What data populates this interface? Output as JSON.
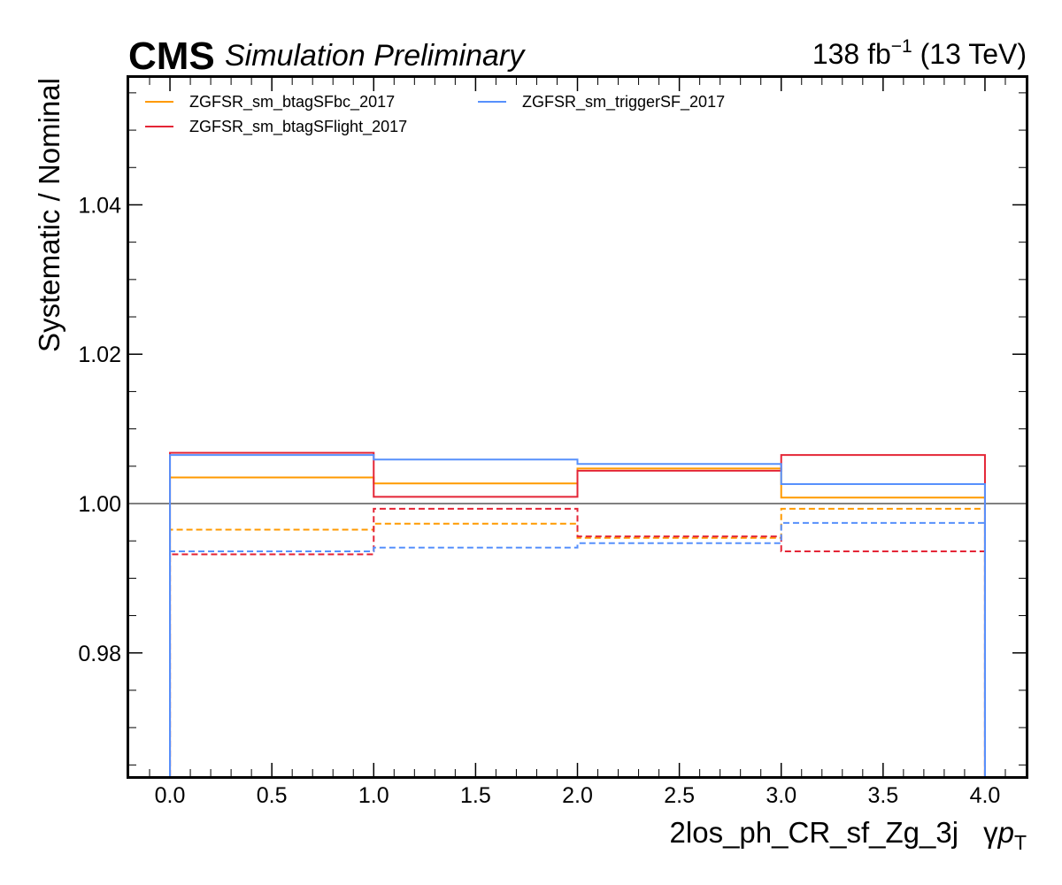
{
  "header": {
    "experiment": "CMS",
    "status": "Simulation Preliminary",
    "lumi_value": "138 fb",
    "lumi_exponent": "−1",
    "lumi_energy": " (13 TeV)"
  },
  "chart_data": {
    "type": "line",
    "title": "",
    "xlabel": "2los_ph_CR_sf_Zg_3j   γpT",
    "xlabel_region": "2los_ph_CR_sf_Zg_3j",
    "xlabel_gamma": "γ",
    "xlabel_p": "p",
    "xlabel_sub": "T",
    "ylabel": "Systematic / Nominal",
    "xlim": [
      -0.2,
      4.2
    ],
    "ylim": [
      0.9635,
      1.057
    ],
    "x_ticks": [
      0.0,
      0.5,
      1.0,
      1.5,
      2.0,
      2.5,
      3.0,
      3.5,
      4.0
    ],
    "x_tick_labels": [
      "0.0",
      "0.5",
      "1.0",
      "1.5",
      "2.0",
      "2.5",
      "3.0",
      "3.5",
      "4.0"
    ],
    "y_ticks": [
      0.98,
      1.0,
      1.02,
      1.04
    ],
    "y_tick_labels": [
      "0.98",
      "1.00",
      "1.02",
      "1.04"
    ],
    "bin_edges": [
      0,
      1,
      2,
      3,
      4
    ],
    "reference_line": 1.0,
    "reference_color": "#808080",
    "legend_position": "top-left",
    "legend_columns": 2,
    "grid": false,
    "series": [
      {
        "name": "ZGFSR_sm_btagSFbc_2017",
        "color": "#ff9a00",
        "up": [
          1.0035,
          1.0027,
          1.0047,
          1.0008
        ],
        "down": [
          0.9965,
          0.9973,
          0.9954,
          0.9993
        ]
      },
      {
        "name": "ZGFSR_sm_btagSFlight_2017",
        "color": "#e42536",
        "up": [
          1.0068,
          1.0009,
          1.0044,
          1.0065
        ],
        "down": [
          0.9932,
          0.9993,
          0.9956,
          0.9936
        ]
      },
      {
        "name": "ZGFSR_sm_triggerSF_2017",
        "color": "#5790fc",
        "up": [
          1.0065,
          1.0059,
          1.0053,
          1.0026
        ],
        "down": [
          0.9936,
          0.9941,
          0.9947,
          0.9974
        ]
      }
    ]
  }
}
